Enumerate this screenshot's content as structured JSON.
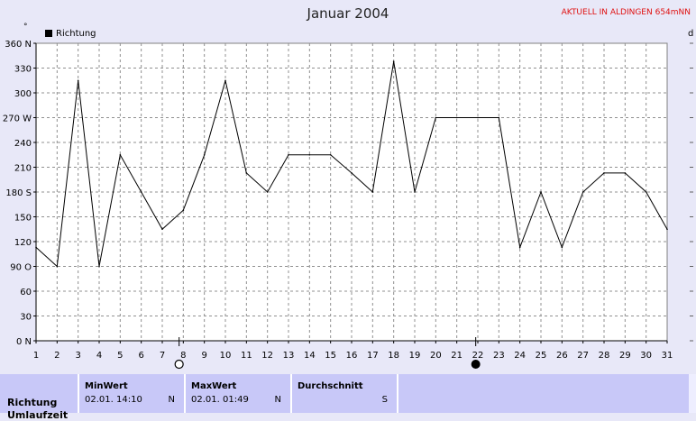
{
  "header": {
    "title": "Januar 2004",
    "station": "AKTUELL IN ALDINGEN 654mNN",
    "unit_degree": "°",
    "right_label": "d"
  },
  "chart_data": {
    "type": "line",
    "title": "Januar 2004",
    "x": [
      1,
      2,
      3,
      4,
      5,
      6,
      7,
      8,
      9,
      10,
      11,
      12,
      13,
      14,
      15,
      16,
      17,
      18,
      19,
      20,
      21,
      22,
      23,
      24,
      25,
      26,
      27,
      28,
      29,
      30,
      31
    ],
    "series": [
      {
        "name": "Richtung",
        "values": [
          113,
          90,
          315,
          90,
          225,
          180,
          135,
          158,
          225,
          315,
          203,
          180,
          225,
          225,
          225,
          203,
          180,
          338,
          180,
          270,
          270,
          270,
          270,
          113,
          180,
          113,
          180,
          203,
          203,
          180,
          135
        ]
      }
    ],
    "xlim": [
      1,
      31
    ],
    "ylim": [
      0,
      360
    ],
    "y_ticks": [
      0,
      30,
      60,
      90,
      120,
      150,
      180,
      210,
      240,
      270,
      300,
      330,
      360
    ],
    "y_tick_labels": {
      "0": "0 N",
      "90": "90 O",
      "180": "180 S",
      "270": "270 W",
      "360": "360 N"
    },
    "grid": true,
    "legend": "top-left",
    "line_color": "#000000",
    "moon_markers": [
      {
        "day": 7.8,
        "phase": "full"
      },
      {
        "day": 21.9,
        "phase": "new"
      }
    ]
  },
  "table": {
    "row_label": "Richtung",
    "row_label_next": "Umlaufzeit",
    "columns": [
      {
        "header": "MinWert",
        "value": "02.01.  14:10",
        "dir": "N"
      },
      {
        "header": "MaxWert",
        "value": "02.01.  01:49",
        "dir": "N"
      },
      {
        "header": "Durchschnitt",
        "value": "",
        "dir": "S"
      }
    ]
  }
}
